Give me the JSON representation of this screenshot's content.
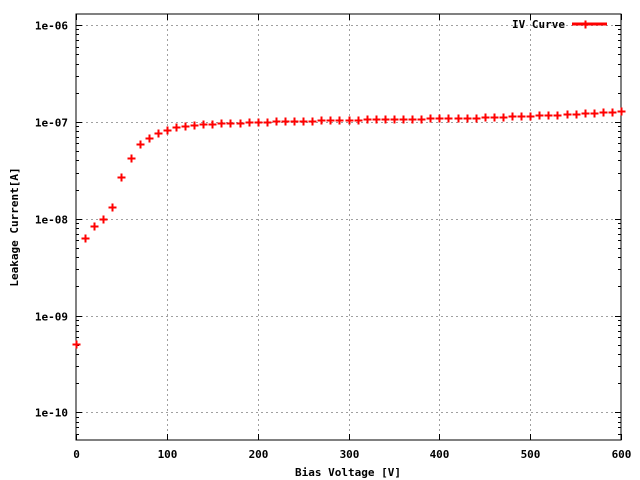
{
  "chart_data": {
    "type": "scatter",
    "title": "",
    "xlabel": "Bias Voltage [V]",
    "ylabel": "Leakage Current[A]",
    "xlim": [
      0,
      600
    ],
    "ylim": [
      5.2e-11,
      1.3e-06
    ],
    "yscale": "log",
    "grid": true,
    "legend_position": "top-right",
    "x_ticks": [
      "0",
      "100",
      "200",
      "300",
      "400",
      "500",
      "600"
    ],
    "x_tick_values": [
      0,
      100,
      200,
      300,
      400,
      500,
      600
    ],
    "y_ticks": [
      "1e-10",
      "1e-09",
      "1e-08",
      "1e-07",
      "1e-06"
    ],
    "y_tick_values": [
      1e-10,
      1e-09,
      1e-08,
      1e-07,
      1e-06
    ],
    "series": [
      {
        "name": "IV Curve",
        "color": "#ff0000",
        "marker": "plus",
        "x": [
          0,
          10,
          20,
          30,
          40,
          50,
          60,
          70,
          80,
          90,
          100,
          110,
          120,
          130,
          140,
          150,
          160,
          170,
          180,
          190,
          200,
          210,
          220,
          230,
          240,
          250,
          260,
          270,
          280,
          290,
          300,
          310,
          320,
          330,
          340,
          350,
          360,
          370,
          380,
          390,
          400,
          410,
          420,
          430,
          440,
          450,
          460,
          470,
          480,
          490,
          500,
          510,
          520,
          530,
          540,
          550,
          560,
          570,
          580,
          590,
          600
        ],
        "y": [
          5.1e-10,
          6.4e-09,
          8.5e-09,
          1e-08,
          1.33e-08,
          2.7e-08,
          4.25e-08,
          5.85e-08,
          6.85e-08,
          7.7e-08,
          8.3e-08,
          8.9e-08,
          9.1e-08,
          9.35e-08,
          9.6e-08,
          9.6e-08,
          9.8e-08,
          9.8e-08,
          9.8e-08,
          9.9e-08,
          1e-07,
          1e-07,
          1.01e-07,
          1.02e-07,
          1.02e-07,
          1.03e-07,
          1.03e-07,
          1.04e-07,
          1.04e-07,
          1.05e-07,
          1.05e-07,
          1.05e-07,
          1.06e-07,
          1.06e-07,
          1.07e-07,
          1.07e-07,
          1.07e-07,
          1.08e-07,
          1.08e-07,
          1.09e-07,
          1.09e-07,
          1.1e-07,
          1.1e-07,
          1.11e-07,
          1.11e-07,
          1.12e-07,
          1.13e-07,
          1.13e-07,
          1.14e-07,
          1.15e-07,
          1.16e-07,
          1.17e-07,
          1.18e-07,
          1.19e-07,
          1.2e-07,
          1.22e-07,
          1.23e-07,
          1.25e-07,
          1.26e-07,
          1.28e-07,
          1.3e-07
        ]
      }
    ]
  }
}
